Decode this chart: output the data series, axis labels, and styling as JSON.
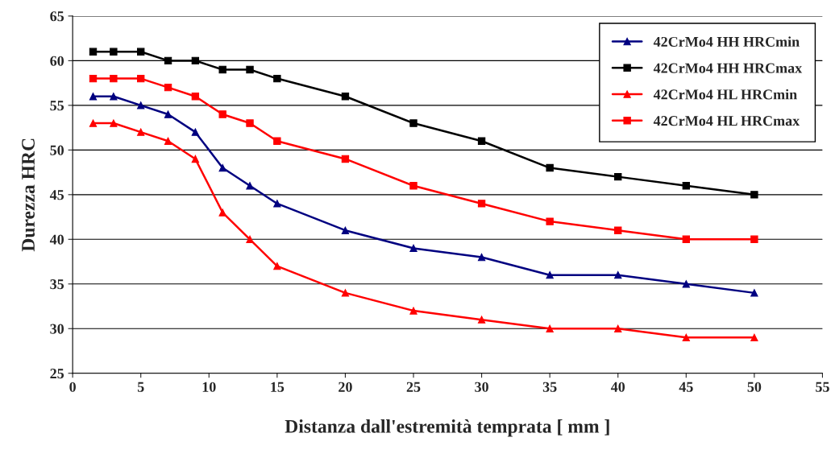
{
  "chart_data": {
    "type": "line",
    "xlabel": "Distanza dall'estremità temprata [ mm ]",
    "ylabel": "Durezza HRC",
    "x": [
      1.5,
      3,
      5,
      7,
      9,
      11,
      13,
      15,
      20,
      25,
      30,
      35,
      40,
      45,
      50
    ],
    "series": [
      {
        "name": "42CrMo4 HH HRCmin",
        "color": "#000080",
        "marker": "triangle",
        "values": [
          56,
          56,
          55,
          54,
          52,
          48,
          46,
          44,
          41,
          39,
          38,
          36,
          36,
          35,
          34
        ]
      },
      {
        "name": "42CrMo4 HH HRCmax",
        "color": "#000000",
        "marker": "square",
        "values": [
          61,
          61,
          61,
          60,
          60,
          59,
          59,
          58,
          56,
          53,
          51,
          48,
          47,
          46,
          45
        ]
      },
      {
        "name": "42CrMo4 HL HRCmin",
        "color": "#ff0000",
        "marker": "triangle",
        "values": [
          53,
          53,
          52,
          51,
          49,
          43,
          40,
          37,
          34,
          32,
          31,
          30,
          30,
          29,
          29
        ]
      },
      {
        "name": "42CrMo4 HL HRCmax",
        "color": "#ff0000",
        "marker": "square",
        "values": [
          58,
          58,
          58,
          57,
          56,
          54,
          53,
          51,
          49,
          46,
          44,
          42,
          41,
          40,
          40
        ]
      }
    ],
    "xlim": [
      0,
      55
    ],
    "xticks": [
      0,
      5,
      10,
      15,
      20,
      25,
      30,
      35,
      40,
      45,
      50,
      55
    ],
    "ylim": [
      25,
      65
    ],
    "yticks": [
      25,
      30,
      35,
      40,
      45,
      50,
      55,
      60,
      65
    ],
    "grid": "y",
    "legend": "top right",
    "line_style": "solid"
  }
}
